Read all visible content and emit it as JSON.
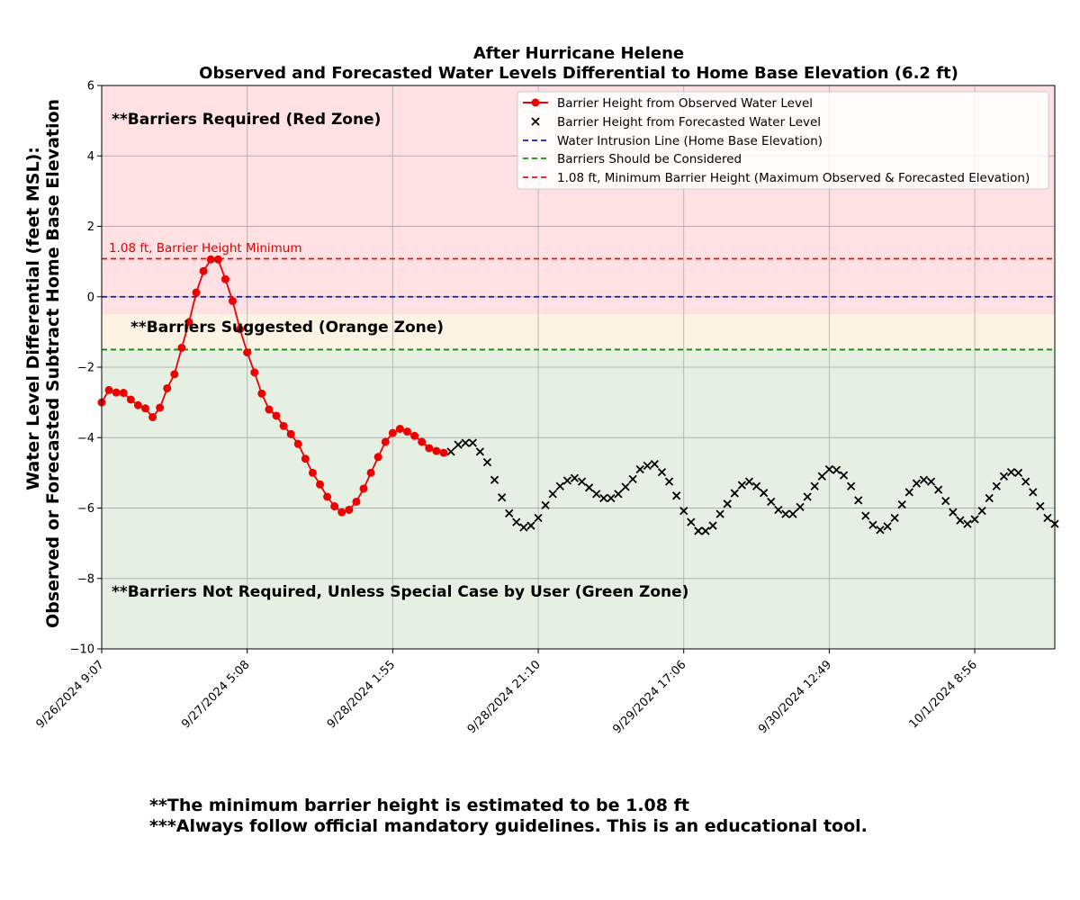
{
  "chart_data": {
    "type": "line",
    "title": "After Hurricane Helene",
    "subtitle": "Observed and Forecasted Water Levels Differential to Home Base Elevation (6.2 ft)",
    "ylabel_line1": "Water Level Differential (feet MSL):",
    "ylabel_line2": "Observed or Forecasted Subtract Home Base Elevation",
    "ylim": [
      -10,
      6
    ],
    "yticks": [
      "6",
      "4",
      "2",
      "0",
      "−2",
      "−4",
      "−6",
      "−8",
      "−10"
    ],
    "xticks": [
      "9/26/2024 9:07",
      "9/27/2024 5:08",
      "9/28/2024 1:55",
      "9/28/2024 21:10",
      "9/29/2024 17:06",
      "9/30/2024 12:49",
      "10/1/2024 8:56"
    ],
    "grid": true,
    "legend_position": "top-right",
    "zones": {
      "red": {
        "from": -0.5,
        "to": 6,
        "color": "#ffe1e3",
        "label": "**Barriers Required (Red Zone)"
      },
      "orange": {
        "from": -1.5,
        "to": -0.5,
        "color": "#fdf3e3",
        "label": "**Barriers Suggested (Orange Zone)"
      },
      "green": {
        "from": -10,
        "to": -1.5,
        "color": "#e5f0e3",
        "label": "**Barriers Not Required, Unless Special Case by User (Green Zone)"
      }
    },
    "hlines": [
      {
        "y": 1.08,
        "color": "#dd1111",
        "legend": "1.08 ft, Minimum Barrier Height (Maximum Observed & Forecasted Elevation)",
        "annotation": "1.08 ft, Barrier Height Minimum"
      },
      {
        "y": 0,
        "color": "#1515cc",
        "legend": "Water Intrusion Line (Home Base Elevation)"
      },
      {
        "y": -1.5,
        "color": "#118811",
        "legend": "Barriers Should be Considered"
      }
    ],
    "series": [
      {
        "name": "Barrier Height from Observed Water Level",
        "color": "#ee0000",
        "marker": "circle",
        "x": [
          0,
          0.05,
          0.1,
          0.15,
          0.2,
          0.25,
          0.3,
          0.35,
          0.4,
          0.45,
          0.5,
          0.55,
          0.6,
          0.65,
          0.7,
          0.75,
          0.8,
          0.85,
          0.9,
          0.95,
          1.0,
          1.05,
          1.1,
          1.15,
          1.2,
          1.25,
          1.3,
          1.35,
          1.4,
          1.45,
          1.5,
          1.55,
          1.6,
          1.65,
          1.7,
          1.75,
          1.8,
          1.85,
          1.9,
          1.95,
          2.0,
          2.05,
          2.1,
          2.15,
          2.2,
          2.25,
          2.3,
          2.35
        ],
        "values": [
          -3.0,
          -2.65,
          -2.72,
          -2.73,
          -2.92,
          -3.08,
          -3.17,
          -3.42,
          -3.15,
          -2.6,
          -2.2,
          -1.45,
          -0.72,
          0.12,
          0.73,
          1.06,
          1.06,
          0.5,
          -0.12,
          -0.92,
          -1.58,
          -2.15,
          -2.75,
          -3.2,
          -3.38,
          -3.67,
          -3.9,
          -4.18,
          -4.6,
          -5.0,
          -5.33,
          -5.68,
          -5.95,
          -6.12,
          -6.05,
          -5.82,
          -5.45,
          -5.0,
          -4.55,
          -4.12,
          -3.87,
          -3.75,
          -3.83,
          -3.95,
          -4.12,
          -4.3,
          -4.38,
          -4.43
        ]
      },
      {
        "name": "Barrier Height from Forecasted Water Level",
        "color": "#000000",
        "marker": "x",
        "x": [
          2.4,
          2.45,
          2.5,
          2.55,
          2.6,
          2.65,
          2.7,
          2.75,
          2.8,
          2.85,
          2.9,
          2.95,
          3.0,
          3.05,
          3.1,
          3.15,
          3.2,
          3.25,
          3.3,
          3.35,
          3.4,
          3.45,
          3.5,
          3.55,
          3.6,
          3.65,
          3.7,
          3.75,
          3.8,
          3.85,
          3.9,
          3.95,
          4.0,
          4.05,
          4.1,
          4.15,
          4.2,
          4.25,
          4.3,
          4.35,
          4.4,
          4.45,
          4.5,
          4.55,
          4.6,
          4.65,
          4.7,
          4.75,
          4.8,
          4.85,
          4.9,
          4.95,
          5.0,
          5.05,
          5.1,
          5.15,
          5.2,
          5.25,
          5.3,
          5.35,
          5.4,
          5.45,
          5.5,
          5.55,
          5.6,
          5.65,
          5.7,
          5.75,
          5.8,
          5.85,
          5.9,
          5.95,
          6.0,
          6.05,
          6.1,
          6.15,
          6.2,
          6.25,
          6.3,
          6.35,
          6.4,
          6.45,
          6.5,
          6.55
        ],
        "values": [
          -4.4,
          -4.2,
          -4.15,
          -4.15,
          -4.4,
          -4.7,
          -5.2,
          -5.7,
          -6.15,
          -6.4,
          -6.55,
          -6.5,
          -6.28,
          -5.92,
          -5.6,
          -5.38,
          -5.22,
          -5.15,
          -5.25,
          -5.42,
          -5.6,
          -5.72,
          -5.72,
          -5.6,
          -5.4,
          -5.18,
          -4.9,
          -4.8,
          -4.75,
          -4.98,
          -5.25,
          -5.65,
          -6.08,
          -6.4,
          -6.65,
          -6.65,
          -6.5,
          -6.17,
          -5.88,
          -5.58,
          -5.35,
          -5.25,
          -5.38,
          -5.57,
          -5.82,
          -6.05,
          -6.17,
          -6.17,
          -5.97,
          -5.68,
          -5.38,
          -5.1,
          -4.9,
          -4.92,
          -5.07,
          -5.38,
          -5.78,
          -6.22,
          -6.48,
          -6.62,
          -6.52,
          -6.28,
          -5.9,
          -5.55,
          -5.3,
          -5.2,
          -5.25,
          -5.48,
          -5.8,
          -6.12,
          -6.35,
          -6.45,
          -6.32,
          -6.08,
          -5.72,
          -5.38,
          -5.1,
          -4.98,
          -5.0,
          -5.25,
          -5.55,
          -5.95,
          -6.28,
          -6.45
        ]
      }
    ]
  },
  "footnotes": [
    "**The minimum barrier height is estimated to be 1.08 ft",
    "***Always follow official mandatory guidelines. This is an educational tool."
  ]
}
